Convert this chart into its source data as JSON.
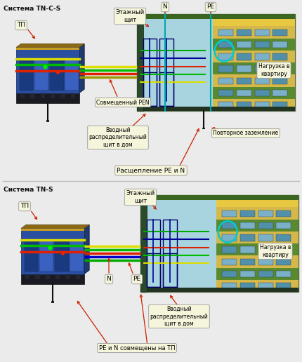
{
  "bg_color": "#ebebeb",
  "title1": "Система TN-C-S",
  "title2": "Система TN-S",
  "labels_top": {
    "tp": "ТП",
    "etazh": "Этажный\nщит",
    "N": "N",
    "PE": "PE",
    "pen": "Совмещенный PEN",
    "vvodniy": "Вводный\nраспределительный\nщит в дом",
    "nagruzka": "Нагрузка в\nквартиру",
    "povtornoe": "Повторное заземление",
    "rasscheplenie": "Расщепление PE и N"
  },
  "labels_bot": {
    "tp": "ТП",
    "etazh": "Этажный\nщит",
    "N": "N",
    "PE": "PE",
    "vvodniy": "Вводный\nраспределительный\nщит в дом",
    "nagruzka": "Нагрузка в\nквартиру",
    "pen_tp": "PE и N совмещены на ТП"
  },
  "arrow_color": "#cc2200",
  "box_bg": "#f5f5dc",
  "box_edge": "#999999"
}
